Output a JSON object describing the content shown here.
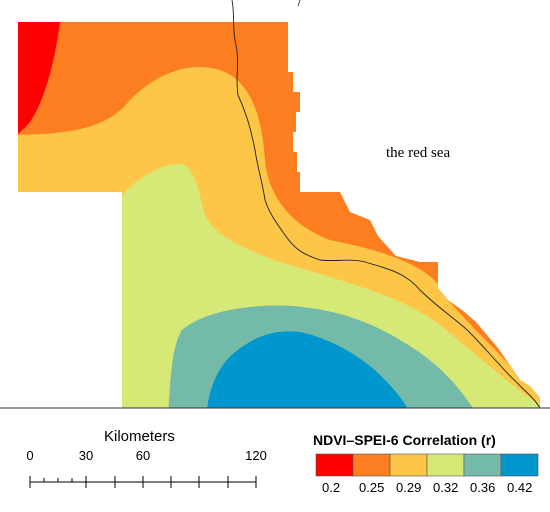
{
  "map": {
    "sea_label": "the red sea",
    "palette": [
      "#ff0000",
      "#fd7e21",
      "#fdc646",
      "#d6e876",
      "#73bba8",
      "#0097ce"
    ]
  },
  "scale_bar": {
    "title": "Kilometers",
    "labels": [
      "0",
      "30",
      "60",
      "120"
    ]
  },
  "legend": {
    "title": "NDVI–SPEI-6 Correlation (r)",
    "breaks": [
      "0.2",
      "0.25",
      "0.29",
      "0.32",
      "0.36",
      "0.42"
    ],
    "colors": [
      "#ff0000",
      "#fd7e21",
      "#fdc646",
      "#d6e876",
      "#73bba8",
      "#0097ce"
    ]
  }
}
